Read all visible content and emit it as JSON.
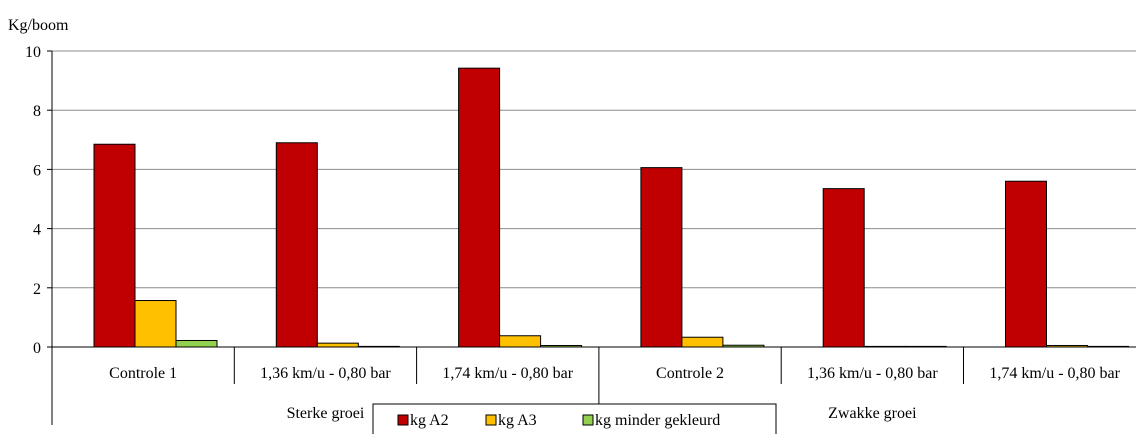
{
  "chart_data": {
    "type": "bar",
    "title": "",
    "ylabel": "Kg/boom",
    "xlabel": "",
    "ylim": [
      0,
      10
    ],
    "yticks": [
      0,
      2,
      4,
      6,
      8,
      10
    ],
    "grid": true,
    "legend_position": "bottom",
    "categories": [
      "Controle 1",
      "1,36 km/u - 0,80 bar",
      "1,74 km/u - 0,80 bar",
      "Controle 2",
      "1,36 km/u - 0,80 bar",
      "1,74 km/u - 0,80 bar"
    ],
    "groups": [
      {
        "label": "Sterke groei",
        "categories": [
          0,
          1,
          2
        ]
      },
      {
        "label": "Zwakke groei",
        "categories": [
          3,
          4,
          5
        ]
      }
    ],
    "series": [
      {
        "name": "kg A2",
        "color": "#c00000",
        "values": [
          6.85,
          6.9,
          9.42,
          6.06,
          5.35,
          5.6
        ]
      },
      {
        "name": "kg A3",
        "color": "#ffc000",
        "values": [
          1.57,
          0.13,
          0.38,
          0.33,
          0.02,
          0.05
        ]
      },
      {
        "name": "kg minder gekleurd",
        "color": "#92d050",
        "values": [
          0.22,
          0.0,
          0.05,
          0.06,
          0.01,
          0.01
        ]
      }
    ]
  }
}
